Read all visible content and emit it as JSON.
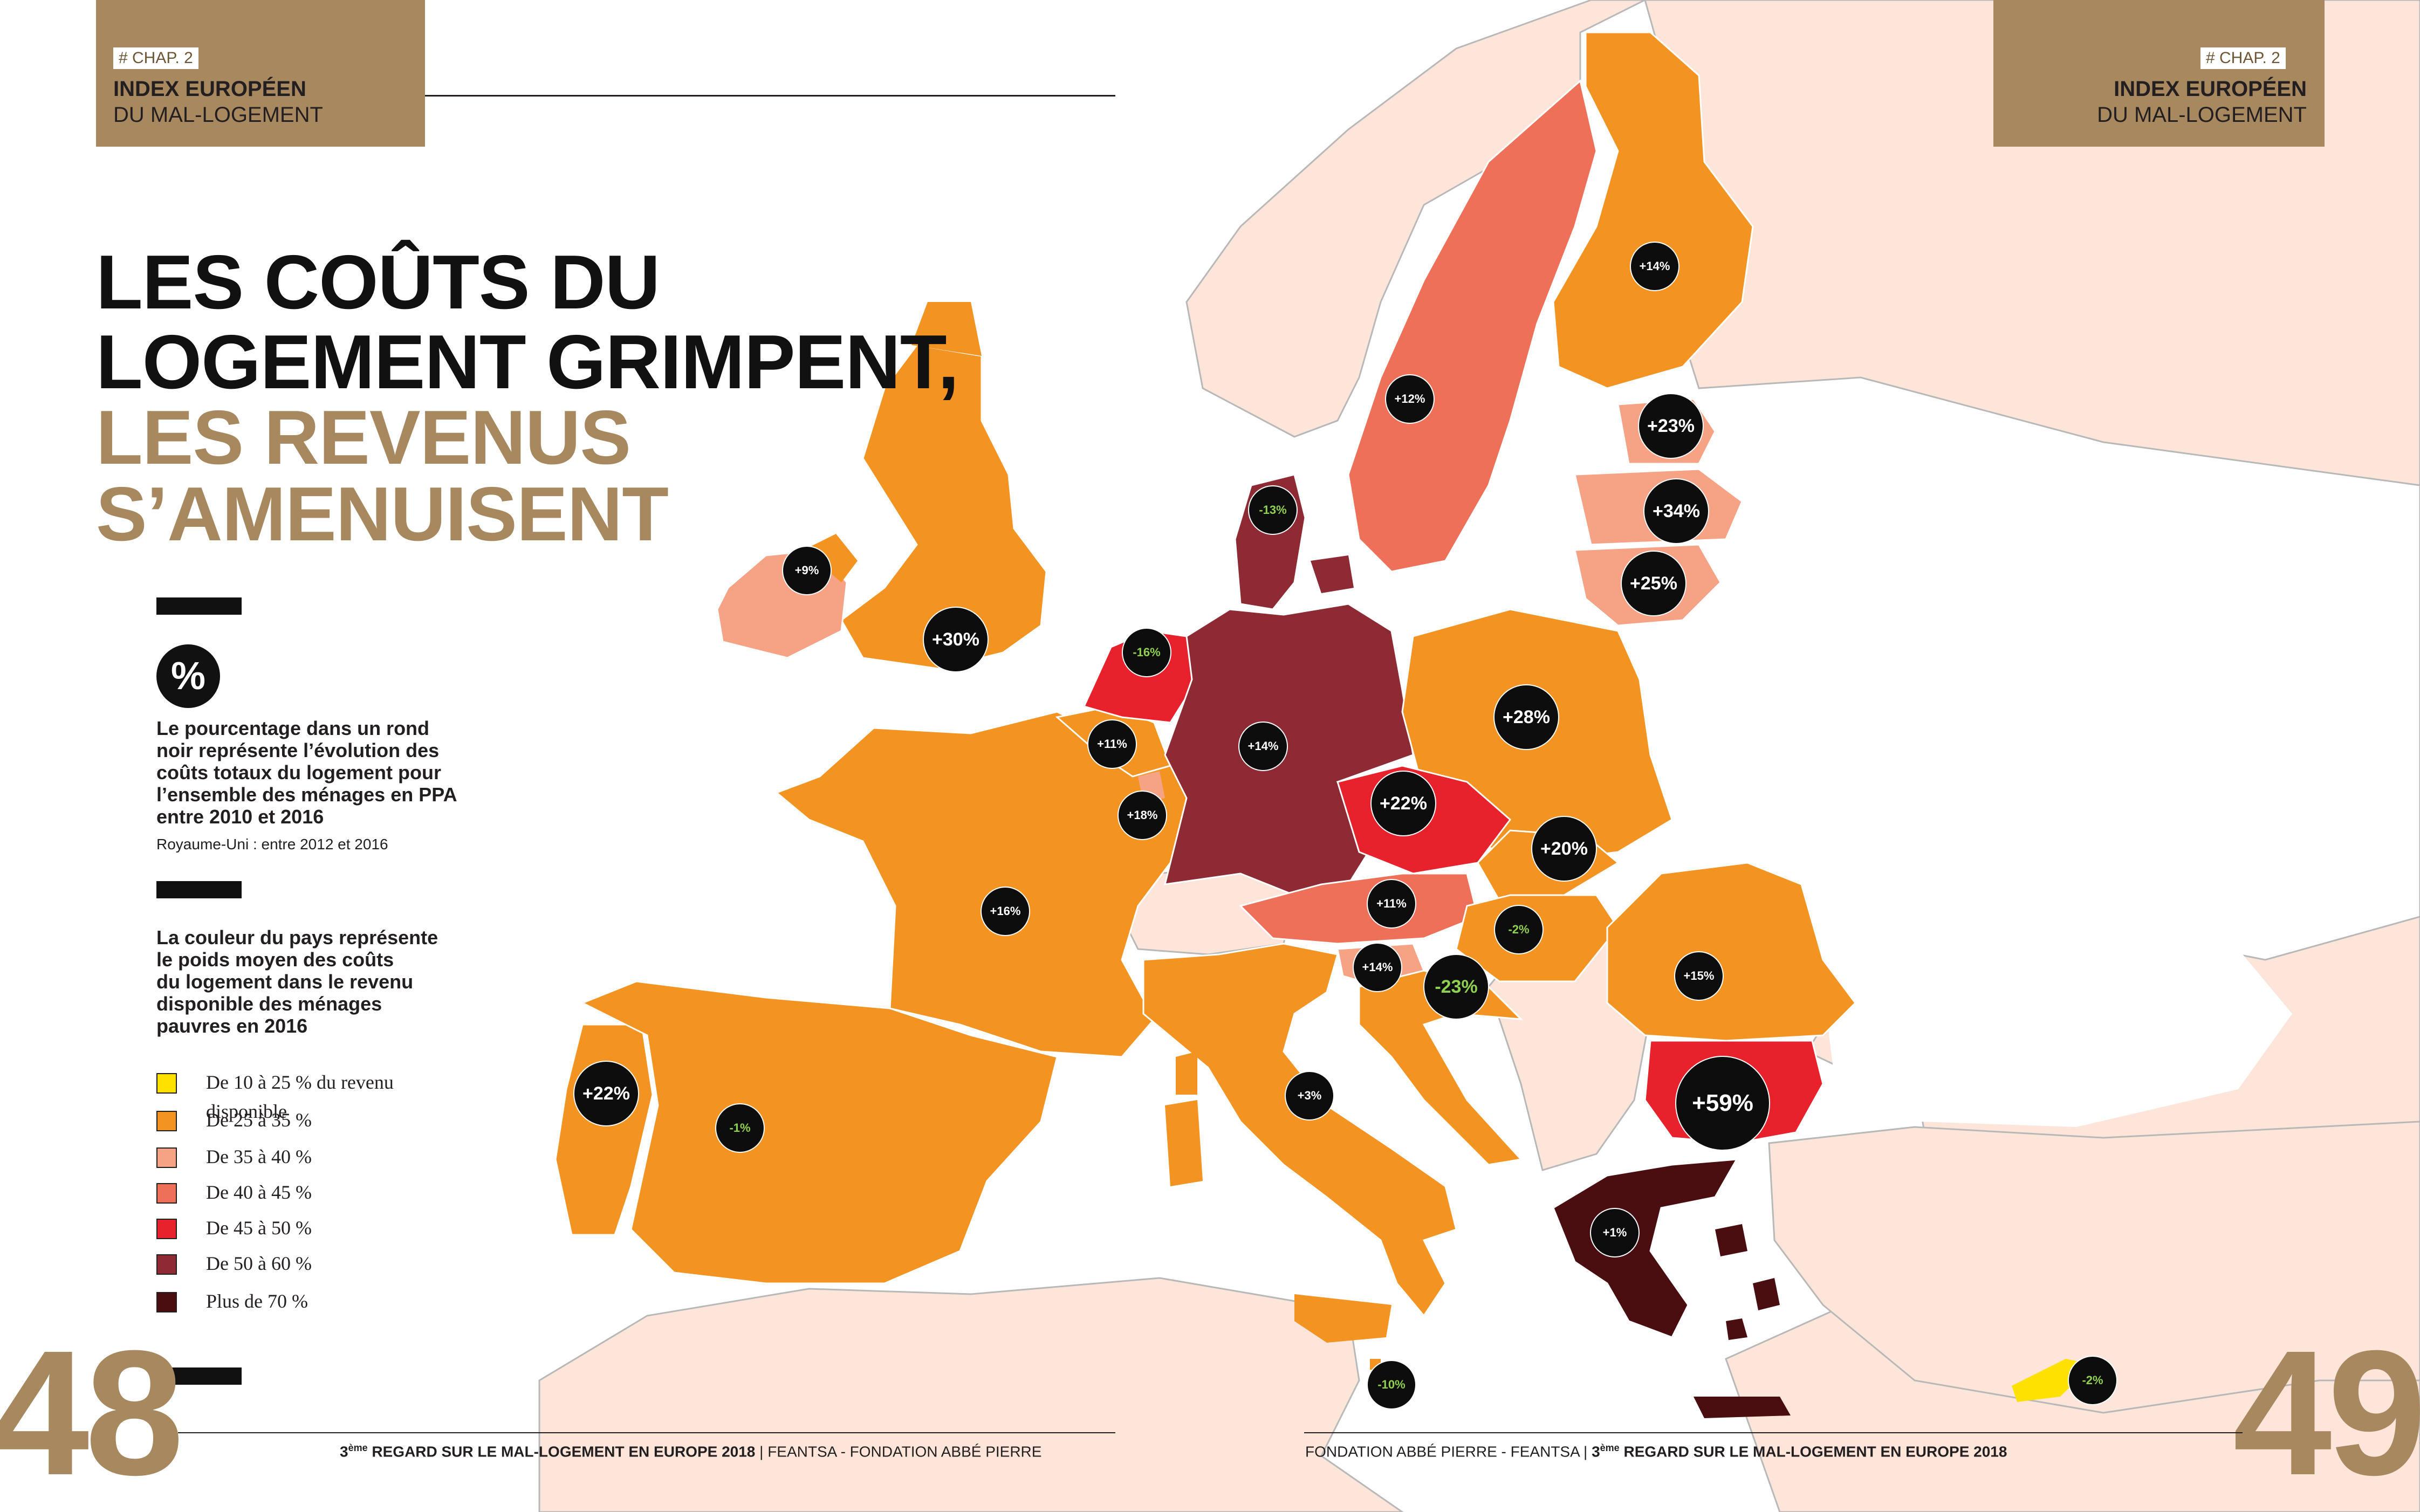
{
  "header_left": {
    "tag": "# CHAP. 2",
    "line1": "INDEX EUROPÉEN",
    "line2": "DU MAL-LOGEMENT"
  },
  "header_right": {
    "tag": "# CHAP. 2",
    "line1": "INDEX EUROPÉEN",
    "line2": "DU MAL-LOGEMENT"
  },
  "title": {
    "line1": "LES COÛTS DU",
    "line2": "LOGEMENT GRIMPENT,",
    "line3": "LES REVENUS",
    "line4": "S’AMENUISENT"
  },
  "legend": {
    "pct_symbol": "%",
    "circle_desc": [
      "Le pourcentage dans un rond",
      "noir représente l’évolution des",
      "coûts totaux du logement pour",
      "l’ensemble des ménages en PPA",
      "entre 2010 et 2016"
    ],
    "circle_note": "Royaume-Uni : entre 2012 et 2016",
    "color_desc": [
      "La couleur du pays représente",
      "le poids moyen des coûts",
      "du logement dans le revenu",
      "disponible des ménages",
      "pauvres en 2016"
    ],
    "classes": [
      {
        "label": "De 10 à 25  % du revenu",
        "label2": "disponible",
        "color": "#ffe100"
      },
      {
        "label": "De 25 à 35 %",
        "color": "#f39422"
      },
      {
        "label": "De 35 à 40 %",
        "color": "#f6a285"
      },
      {
        "label": "De 40 à 45 %",
        "color": "#ee7058"
      },
      {
        "label": "De 45 à 50 %",
        "color": "#e8222c"
      },
      {
        "label": "De 50 à 60 %",
        "color": "#8e2a33"
      },
      {
        "label": "Plus de 70 %",
        "color": "#4a0d10"
      }
    ]
  },
  "page_numbers": {
    "left": "48",
    "right": "49"
  },
  "footer_left": {
    "sup": "ème",
    "bold_pre": "3",
    "bold": " REGARD SUR LE MAL-LOGEMENT EN EUROPE 2018",
    "rest": " | FEANTSA - FONDATION ABBÉ PIERRE"
  },
  "footer_right": {
    "rest": "FONDATION ABBÉ PIERRE - FEANTSA | ",
    "bold_pre": "3",
    "sup": "ème",
    "bold": " REGARD SUR LE MAL-LOGEMENT EN EUROPE 2018"
  },
  "map_colors": {
    "sea": "#ffffff",
    "non_eu": "#fde5da",
    "border": "#9a9a9a"
  },
  "bubbles": [
    {
      "country": "Finland",
      "label": "+14%",
      "size": "s"
    },
    {
      "country": "Sweden",
      "label": "+12%",
      "size": "s"
    },
    {
      "country": "Estonia",
      "label": "+23%",
      "size": "m"
    },
    {
      "country": "Latvia",
      "label": "+34%",
      "size": "m"
    },
    {
      "country": "Lithuania",
      "label": "+25%",
      "size": "m"
    },
    {
      "country": "Denmark",
      "label": "-13%",
      "size": "s",
      "negative": true
    },
    {
      "country": "Ireland",
      "label": "+9%",
      "size": "s"
    },
    {
      "country": "United Kingdom",
      "label": "+30%",
      "size": "m"
    },
    {
      "country": "Netherlands",
      "label": "-16%",
      "size": "s",
      "negative": true
    },
    {
      "country": "Belgium",
      "label": "+11%",
      "size": "s"
    },
    {
      "country": "Germany",
      "label": "+14%",
      "size": "s"
    },
    {
      "country": "Luxembourg",
      "label": "+18%",
      "size": "s"
    },
    {
      "country": "Poland",
      "label": "+28%",
      "size": "m"
    },
    {
      "country": "Czech Republic",
      "label": "+22%",
      "size": "m"
    },
    {
      "country": "Slovakia",
      "label": "+20%",
      "size": "m"
    },
    {
      "country": "France",
      "label": "+16%",
      "size": "s"
    },
    {
      "country": "Austria",
      "label": "+11%",
      "size": "s"
    },
    {
      "country": "Hungary",
      "label": "-2%",
      "size": "s",
      "negative": true
    },
    {
      "country": "Slovenia",
      "label": "+14%",
      "size": "s"
    },
    {
      "country": "Croatia",
      "label": "-23%",
      "size": "m",
      "negative": true
    },
    {
      "country": "Romania",
      "label": "+15%",
      "size": "s"
    },
    {
      "country": "Portugal",
      "label": "+22%",
      "size": "m"
    },
    {
      "country": "Spain",
      "label": "-1%",
      "size": "s",
      "negative": true
    },
    {
      "country": "Italy",
      "label": "+3%",
      "size": "s"
    },
    {
      "country": "Bulgaria",
      "label": "+59%",
      "size": "l"
    },
    {
      "country": "Greece",
      "label": "+1%",
      "size": "s"
    },
    {
      "country": "Malta",
      "label": "-10%",
      "size": "s",
      "negative": true
    },
    {
      "country": "Cyprus",
      "label": "-2%",
      "size": "s",
      "negative": true
    }
  ]
}
